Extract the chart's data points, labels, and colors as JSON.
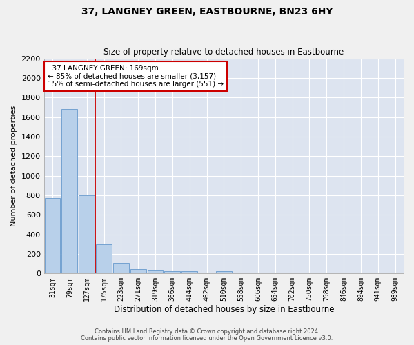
{
  "title": "37, LANGNEY GREEN, EASTBOURNE, BN23 6HY",
  "subtitle": "Size of property relative to detached houses in Eastbourne",
  "xlabel": "Distribution of detached houses by size in Eastbourne",
  "ylabel": "Number of detached properties",
  "footer_line1": "Contains HM Land Registry data © Crown copyright and database right 2024.",
  "footer_line2": "Contains public sector information licensed under the Open Government Licence v3.0.",
  "bar_labels": [
    "31sqm",
    "79sqm",
    "127sqm",
    "175sqm",
    "223sqm",
    "271sqm",
    "319sqm",
    "366sqm",
    "414sqm",
    "462sqm",
    "510sqm",
    "558sqm",
    "606sqm",
    "654sqm",
    "702sqm",
    "750sqm",
    "798sqm",
    "846sqm",
    "894sqm",
    "941sqm",
    "989sqm"
  ],
  "bar_values": [
    770,
    1680,
    800,
    300,
    110,
    45,
    32,
    25,
    22,
    0,
    20,
    0,
    0,
    0,
    0,
    0,
    0,
    0,
    0,
    0,
    0
  ],
  "bar_color": "#b8d0ea",
  "bar_edge_color": "#6699cc",
  "bg_color": "#dde4f0",
  "grid_color": "#ffffff",
  "vline_color": "#cc0000",
  "annotation_text": "  37 LANGNEY GREEN: 169sqm  \n← 85% of detached houses are smaller (3,157)\n15% of semi-detached houses are larger (551) →",
  "annotation_box_color": "#ffffff",
  "annotation_box_edge": "#cc0000",
  "ylim": [
    0,
    2200
  ],
  "yticks": [
    0,
    200,
    400,
    600,
    800,
    1000,
    1200,
    1400,
    1600,
    1800,
    2000,
    2200
  ],
  "fig_width": 6.0,
  "fig_height": 5.0,
  "dpi": 100
}
